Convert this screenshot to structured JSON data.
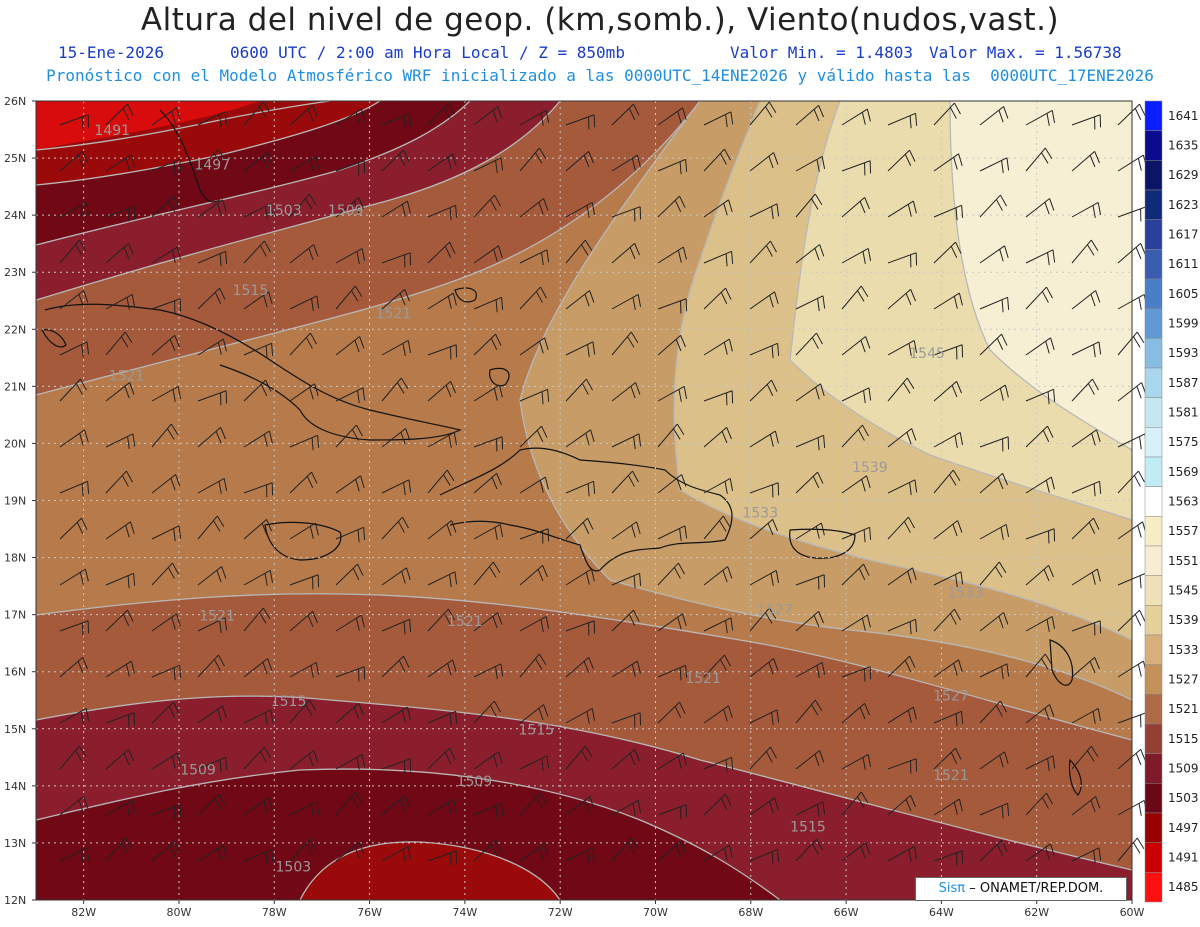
{
  "header": {
    "title": "Altura del nivel de geop. (km,somb.), Viento(nudos,vast.)",
    "date": "15-Ene-2026",
    "time": "0600 UTC / 2:00 am Hora Local / Z = 850mb",
    "min": "Valor Min. = 1.4803",
    "max": "Valor Max. = 1.56738",
    "forecast": "Pronóstico con el Modelo Atmosférico WRF inicializado a las 0000UTC_14ENE2026 y válido hasta las  0000UTC_17ENE2026"
  },
  "map": {
    "lat_labels": [
      "26N",
      "25N",
      "24N",
      "23N",
      "22N",
      "21N",
      "20N",
      "19N",
      "18N",
      "17N",
      "16N",
      "15N",
      "14N",
      "13N",
      "12N"
    ],
    "lon_labels": [
      "82W",
      "80W",
      "78W",
      "76W",
      "74W",
      "72W",
      "70W",
      "68W",
      "66W",
      "64W",
      "62W",
      "60W"
    ],
    "contour_labels": [
      {
        "text": "1491",
        "lon": -81.4,
        "lat": 25.4
      },
      {
        "text": "1497",
        "lon": -79.3,
        "lat": 24.8
      },
      {
        "text": "1503",
        "lon": -77.8,
        "lat": 24.0
      },
      {
        "text": "1509",
        "lon": -76.5,
        "lat": 24.0
      },
      {
        "text": "1515",
        "lon": -78.5,
        "lat": 22.6
      },
      {
        "text": "1521",
        "lon": -75.5,
        "lat": 22.2
      },
      {
        "text": "1521",
        "lon": -81.1,
        "lat": 21.1
      },
      {
        "text": "1545",
        "lon": -64.3,
        "lat": 21.5
      },
      {
        "text": "1539",
        "lon": -65.5,
        "lat": 19.5
      },
      {
        "text": "1533",
        "lon": -67.8,
        "lat": 18.7
      },
      {
        "text": "1527",
        "lon": -67.5,
        "lat": 17.0
      },
      {
        "text": "1533",
        "lon": -63.5,
        "lat": 17.3
      },
      {
        "text": "1521",
        "lon": -79.2,
        "lat": 16.9
      },
      {
        "text": "1521",
        "lon": -74.0,
        "lat": 16.8
      },
      {
        "text": "1521",
        "lon": -69.0,
        "lat": 15.8
      },
      {
        "text": "1527",
        "lon": -63.8,
        "lat": 15.5
      },
      {
        "text": "1515",
        "lon": -77.7,
        "lat": 15.4
      },
      {
        "text": "1515",
        "lon": -72.5,
        "lat": 14.9
      },
      {
        "text": "1509",
        "lon": -79.6,
        "lat": 14.2
      },
      {
        "text": "1509",
        "lon": -73.8,
        "lat": 14.0
      },
      {
        "text": "1521",
        "lon": -63.8,
        "lat": 14.1
      },
      {
        "text": "1515",
        "lon": -66.8,
        "lat": 13.2
      },
      {
        "text": "1503",
        "lon": -77.6,
        "lat": 12.5
      }
    ]
  },
  "colorbar": {
    "levels": [
      "1641",
      "1635",
      "1629",
      "1623",
      "1617",
      "1611",
      "1605",
      "1599",
      "1593",
      "1587",
      "1581",
      "1575",
      "1569",
      "1563",
      "1557",
      "1551",
      "1545",
      "1539",
      "1533",
      "1527",
      "1521",
      "1515",
      "1509",
      "1503",
      "1497",
      "1491",
      "1485"
    ],
    "colors": [
      "#0a1dff",
      "#0b0b8f",
      "#0c1466",
      "#102a7a",
      "#2a3f9a",
      "#3a5db0",
      "#4a7ec6",
      "#5f9ad4",
      "#87bde2",
      "#a9d6ec",
      "#c4e7f2",
      "#d8f0f7",
      "#c0ecf5",
      "#ffffff",
      "#f7eec6",
      "#f7edd0",
      "#f0e2b8",
      "#e6cf98",
      "#d7b079",
      "#c4905c",
      "#ad6a45",
      "#923f34",
      "#7e1a2a",
      "#6a0818",
      "#990000",
      "#cc0000",
      "#ff1010"
    ]
  },
  "credit": {
    "logo": "Sisπ",
    "text": "– ONAMET/REP.DOM."
  },
  "colors": {
    "title": "#222222",
    "date_line": "#1a3cc8",
    "forecast_line": "#1e8fe0"
  }
}
